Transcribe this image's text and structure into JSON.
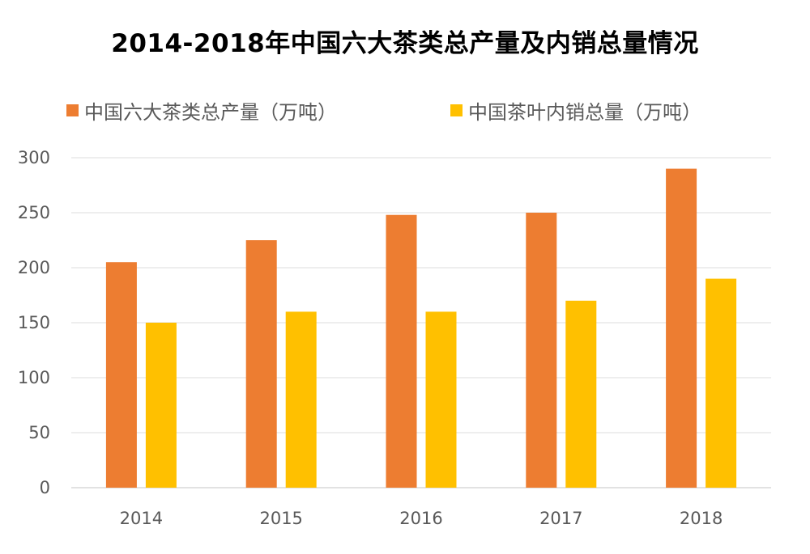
{
  "chart_data": {
    "type": "bar",
    "title": "2014-2018年中国六大茶类总产量及内销总量情况",
    "xlabel": "",
    "ylabel": "",
    "categories": [
      "2014",
      "2015",
      "2016",
      "2017",
      "2018"
    ],
    "series": [
      {
        "name": "中国六大茶类总产量（万吨）",
        "values": [
          205,
          225,
          248,
          250,
          290
        ],
        "color": "#ED7D31"
      },
      {
        "name": "中国茶叶内销总量（万吨）",
        "values": [
          150,
          160,
          160,
          170,
          190
        ],
        "color": "#FFC000"
      }
    ],
    "ylim": [
      0,
      300
    ],
    "yticks": [
      "0",
      "50",
      "100",
      "150",
      "200",
      "250",
      "300"
    ],
    "grid": true,
    "legend_position": "top-left"
  }
}
